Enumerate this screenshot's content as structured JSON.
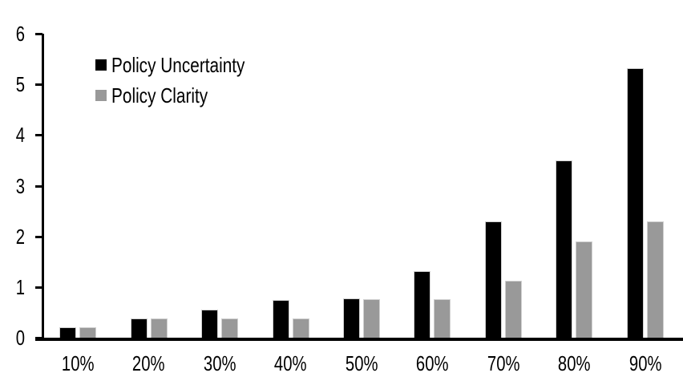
{
  "chart_data": {
    "type": "bar",
    "title": "",
    "xlabel": "",
    "ylabel": "",
    "categories": [
      "10%",
      "20%",
      "30%",
      "40%",
      "50%",
      "60%",
      "70%",
      "80%",
      "90%"
    ],
    "series": [
      {
        "name": "Policy Uncertainty",
        "color": "#000000",
        "values": [
          0.2,
          0.38,
          0.55,
          0.75,
          0.77,
          1.32,
          2.3,
          3.5,
          5.32
        ]
      },
      {
        "name": "Policy Clarity",
        "color": "#999999",
        "values": [
          0.2,
          0.38,
          0.38,
          0.38,
          0.76,
          0.76,
          1.13,
          1.9,
          2.3
        ]
      }
    ],
    "ylim": [
      0,
      6
    ],
    "yticks": [
      "0",
      "1",
      "2",
      "3",
      "4",
      "5",
      "6"
    ],
    "grid": false,
    "legend_position": "top-left-inside",
    "axis_color": "#000000",
    "background_color": "#ffffff"
  }
}
